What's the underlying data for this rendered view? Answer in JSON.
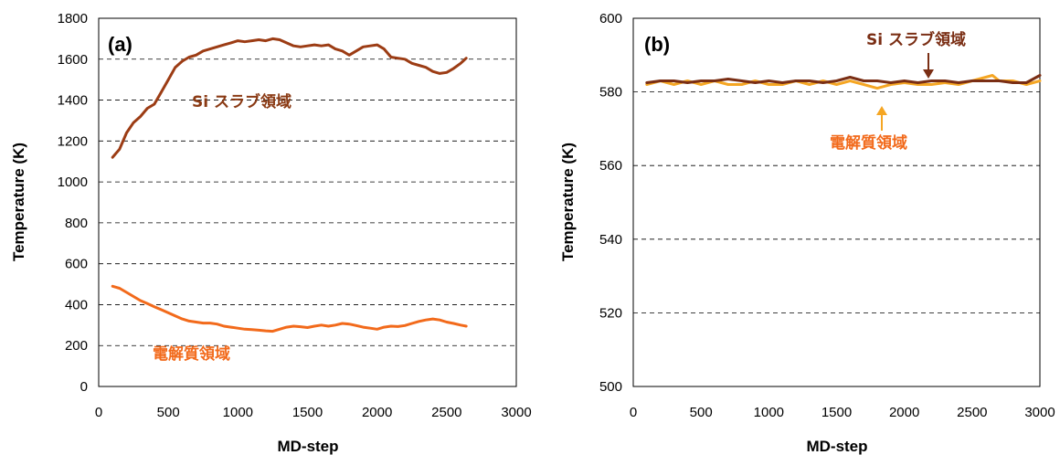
{
  "chart_data": [
    {
      "type": "line",
      "panel_label": "(a)",
      "xlabel": "MD-step",
      "ylabel": "Temperature (K)",
      "xlim": [
        0,
        3000
      ],
      "ylim": [
        0,
        1800
      ],
      "xticks": [
        0,
        500,
        1000,
        1500,
        2000,
        2500,
        3000
      ],
      "yticks": [
        0,
        200,
        400,
        600,
        800,
        1000,
        1200,
        1400,
        1600,
        1800
      ],
      "grid": "horizontal dashed",
      "series": [
        {
          "name": "Si スラブ領域",
          "color": "#9c3c14",
          "x": [
            100,
            150,
            200,
            250,
            300,
            350,
            400,
            450,
            500,
            550,
            600,
            650,
            700,
            750,
            800,
            850,
            900,
            950,
            1000,
            1050,
            1100,
            1150,
            1200,
            1250,
            1300,
            1350,
            1400,
            1450,
            1500,
            1550,
            1600,
            1650,
            1700,
            1750,
            1800,
            1850,
            1900,
            1950,
            2000,
            2050,
            2100,
            2150,
            2200,
            2250,
            2300,
            2350,
            2400,
            2450,
            2500,
            2550,
            2600,
            2640
          ],
          "y": [
            1120,
            1160,
            1240,
            1290,
            1320,
            1360,
            1380,
            1440,
            1500,
            1560,
            1590,
            1610,
            1620,
            1640,
            1650,
            1660,
            1670,
            1680,
            1690,
            1685,
            1690,
            1695,
            1690,
            1700,
            1695,
            1680,
            1665,
            1660,
            1665,
            1670,
            1665,
            1670,
            1650,
            1640,
            1620,
            1640,
            1660,
            1665,
            1670,
            1650,
            1610,
            1605,
            1600,
            1580,
            1570,
            1560,
            1540,
            1530,
            1535,
            1555,
            1580,
            1605
          ]
        },
        {
          "name": "電解質領域",
          "color": "#f26a1b",
          "x": [
            100,
            150,
            200,
            250,
            300,
            350,
            400,
            450,
            500,
            550,
            600,
            650,
            700,
            750,
            800,
            850,
            900,
            950,
            1000,
            1050,
            1100,
            1150,
            1200,
            1250,
            1300,
            1350,
            1400,
            1450,
            1500,
            1550,
            1600,
            1650,
            1700,
            1750,
            1800,
            1850,
            1900,
            1950,
            2000,
            2050,
            2100,
            2150,
            2200,
            2250,
            2300,
            2350,
            2400,
            2450,
            2500,
            2550,
            2600,
            2640
          ],
          "y": [
            490,
            480,
            460,
            440,
            420,
            405,
            390,
            375,
            360,
            345,
            330,
            320,
            315,
            310,
            310,
            305,
            295,
            290,
            285,
            280,
            278,
            275,
            272,
            270,
            280,
            290,
            295,
            292,
            288,
            295,
            300,
            295,
            300,
            308,
            305,
            298,
            290,
            285,
            280,
            290,
            295,
            293,
            298,
            308,
            318,
            325,
            330,
            325,
            315,
            308,
            300,
            295
          ]
        }
      ],
      "annotations": [
        {
          "text": "Si スラブ領域",
          "color": "#8a3a14",
          "x": 1000,
          "y": 1390
        },
        {
          "text": "電解質領域",
          "color": "#f26a1b",
          "x": 500,
          "y": 150
        }
      ]
    },
    {
      "type": "line",
      "panel_label": "(b)",
      "xlabel": "MD-step",
      "ylabel": "Temperature (K)",
      "xlim": [
        0,
        3000
      ],
      "ylim": [
        500,
        600
      ],
      "xticks": [
        0,
        500,
        1000,
        1500,
        2000,
        2500,
        3000
      ],
      "yticks": [
        500,
        520,
        540,
        560,
        580,
        600
      ],
      "grid": "horizontal dashed",
      "series": [
        {
          "name": "電解質領域",
          "color": "#f5a623",
          "x": [
            100,
            200,
            300,
            400,
            500,
            600,
            700,
            800,
            900,
            1000,
            1100,
            1200,
            1300,
            1400,
            1500,
            1600,
            1700,
            1750,
            1800,
            1850,
            1900,
            2000,
            2100,
            2200,
            2300,
            2400,
            2500,
            2600,
            2650,
            2700,
            2800,
            2900,
            3000
          ],
          "y": [
            582,
            583,
            582,
            583,
            582,
            583,
            582,
            582,
            583,
            582,
            582,
            583,
            582,
            583,
            582,
            583,
            582,
            581.5,
            581,
            581.5,
            582,
            582.5,
            582,
            582,
            582.5,
            582,
            583,
            584,
            584.5,
            583,
            583,
            582,
            583
          ]
        },
        {
          "name": "Si スラブ領域",
          "color": "#7a2e14",
          "x": [
            100,
            200,
            300,
            400,
            500,
            600,
            700,
            800,
            900,
            1000,
            1100,
            1200,
            1300,
            1400,
            1500,
            1600,
            1700,
            1800,
            1900,
            2000,
            2100,
            2200,
            2300,
            2400,
            2500,
            2600,
            2700,
            2800,
            2900,
            3000
          ],
          "y": [
            582.5,
            583,
            583,
            582.5,
            583,
            583,
            583.5,
            583,
            582.5,
            583,
            582.5,
            583,
            583,
            582.5,
            583,
            584,
            583,
            583,
            582.5,
            583,
            582.5,
            583,
            583,
            582.5,
            583,
            583,
            583,
            582.5,
            582.5,
            584.5
          ]
        }
      ],
      "annotations": [
        {
          "text": "Si スラブ領域",
          "color": "#7a2e14",
          "x": 2200,
          "y": 595
        },
        {
          "text": "電解質領域",
          "color": "#f26a1b",
          "x": 1850,
          "y": 571
        }
      ]
    }
  ]
}
